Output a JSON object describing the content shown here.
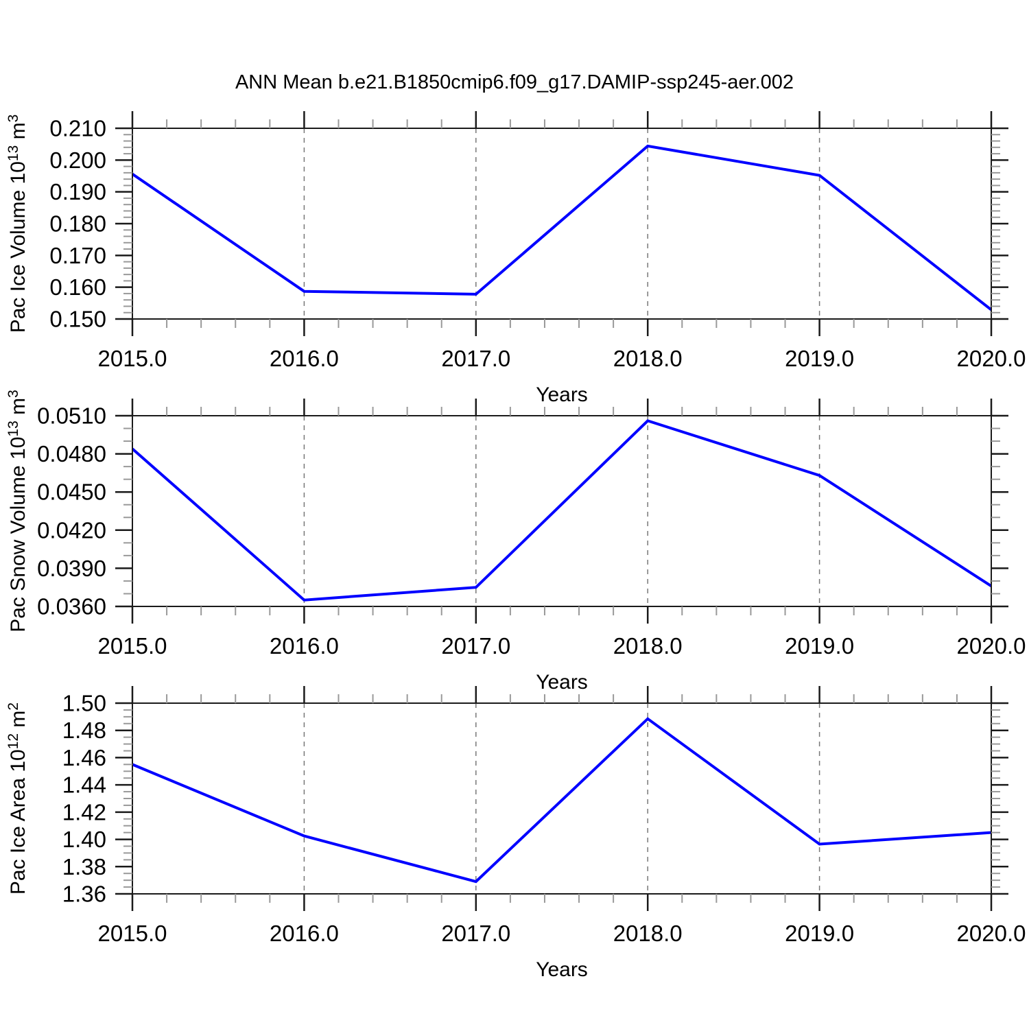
{
  "title": "ANN Mean b.e21.B1850cmip6.f09_g17.DAMIP-ssp245-aer.002",
  "xlabel": "Years",
  "x_tick_labels": [
    "2015.0",
    "2016.0",
    "2017.0",
    "2018.0",
    "2019.0",
    "2020.0"
  ],
  "colors": {
    "line": "#0000ff",
    "axis": "#1a1a1a",
    "minor_tick": "#999999",
    "gridline": "#777777",
    "text": "#000000",
    "background": "#ffffff"
  },
  "chart_data": [
    {
      "type": "line",
      "ylabel": "Pac Ice Volume 10¹³ m³",
      "ylabel_parts": [
        {
          "t": "Pac Ice Volume 10",
          "sup": false
        },
        {
          "t": "13",
          "sup": true
        },
        {
          "t": " m",
          "sup": false
        },
        {
          "t": "3",
          "sup": true
        }
      ],
      "xlabel": "Years",
      "x": [
        2015.0,
        2016.0,
        2017.0,
        2018.0,
        2019.0,
        2020.0
      ],
      "values": [
        0.1956,
        0.1587,
        0.1578,
        0.2044,
        0.1952,
        0.1529
      ],
      "xlim": [
        2015.0,
        2020.0
      ],
      "ylim": [
        0.15,
        0.21
      ],
      "ytick_values": [
        0.15,
        0.16,
        0.17,
        0.18,
        0.19,
        0.2,
        0.21
      ],
      "ytick_labels": [
        "0.150",
        "0.160",
        "0.170",
        "0.180",
        "0.190",
        "0.200",
        "0.210"
      ],
      "y_major_step": 0.01,
      "y_minor_step": 0.002,
      "x_major_step": 1.0,
      "x_minor_step": 0.2,
      "grid_x": [
        2016.0,
        2017.0,
        2018.0,
        2019.0
      ],
      "grid_style": "dashed-vertical",
      "legend": "none"
    },
    {
      "type": "line",
      "ylabel": "Pac Snow Volume 10¹³ m³",
      "ylabel_parts": [
        {
          "t": "Pac Snow Volume 10",
          "sup": false
        },
        {
          "t": "13",
          "sup": true
        },
        {
          "t": " m",
          "sup": false
        },
        {
          "t": "3",
          "sup": true
        }
      ],
      "xlabel": "Years",
      "x": [
        2015.0,
        2016.0,
        2017.0,
        2018.0,
        2019.0,
        2020.0
      ],
      "values": [
        0.0484,
        0.0365,
        0.0375,
        0.0506,
        0.0463,
        0.0376
      ],
      "xlim": [
        2015.0,
        2020.0
      ],
      "ylim": [
        0.036,
        0.051
      ],
      "ytick_values": [
        0.036,
        0.039,
        0.042,
        0.045,
        0.048,
        0.051
      ],
      "ytick_labels": [
        "0.0360",
        "0.0390",
        "0.0420",
        "0.0450",
        "0.0480",
        "0.0510"
      ],
      "y_major_step": 0.003,
      "y_minor_step": 0.001,
      "x_major_step": 1.0,
      "x_minor_step": 0.2,
      "grid_x": [
        2016.0,
        2017.0,
        2018.0,
        2019.0
      ],
      "grid_style": "dashed-vertical",
      "legend": "none"
    },
    {
      "type": "line",
      "ylabel": "Pac Ice Area 10¹² m²",
      "ylabel_parts": [
        {
          "t": "Pac Ice Area 10",
          "sup": false
        },
        {
          "t": "12",
          "sup": true
        },
        {
          "t": " m",
          "sup": false
        },
        {
          "t": "2",
          "sup": true
        }
      ],
      "xlabel": "Years",
      "x": [
        2015.0,
        2016.0,
        2017.0,
        2018.0,
        2019.0,
        2020.0
      ],
      "values": [
        1.455,
        1.4025,
        1.369,
        1.4885,
        1.3965,
        1.405
      ],
      "xlim": [
        2015.0,
        2020.0
      ],
      "ylim": [
        1.36,
        1.5
      ],
      "ytick_values": [
        1.36,
        1.38,
        1.4,
        1.42,
        1.44,
        1.46,
        1.48,
        1.5
      ],
      "ytick_labels": [
        "1.36",
        "1.38",
        "1.40",
        "1.42",
        "1.44",
        "1.46",
        "1.48",
        "1.50"
      ],
      "y_major_step": 0.02,
      "y_minor_step": 0.005,
      "x_major_step": 1.0,
      "x_minor_step": 0.2,
      "grid_x": [
        2016.0,
        2017.0,
        2018.0,
        2019.0
      ],
      "grid_style": "dashed-vertical",
      "legend": "none"
    }
  ]
}
